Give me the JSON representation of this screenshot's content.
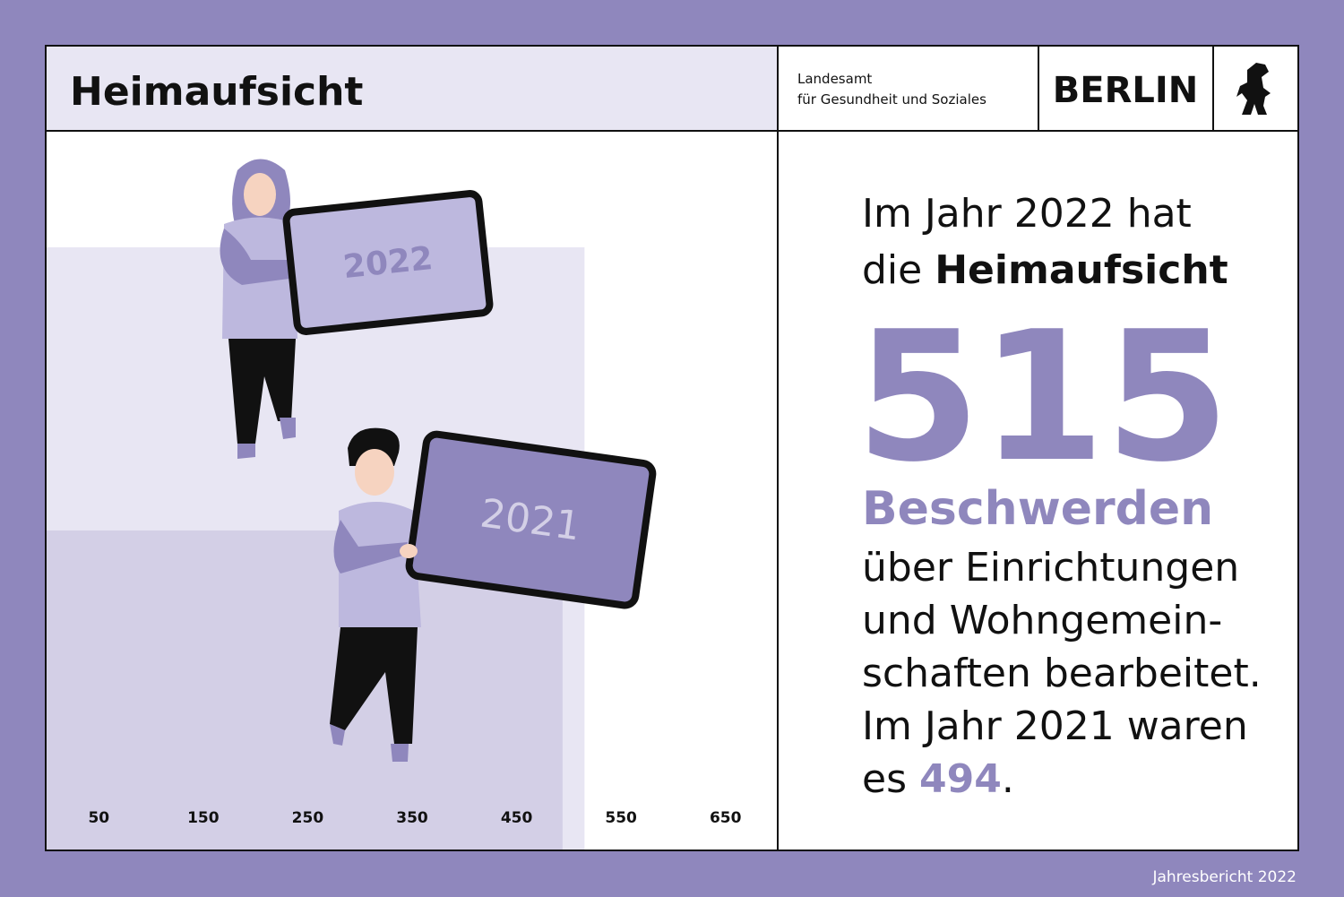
{
  "header": {
    "title": "Heimaufsicht",
    "org_line1": "Landesamt",
    "org_line2": "für Gesundheit und Soziales",
    "city": "BERLIN"
  },
  "chart_data": {
    "type": "bar",
    "orientation": "horizontal",
    "categories": [
      "2022",
      "2021"
    ],
    "values": [
      515,
      494
    ],
    "colors": [
      "#e8e6f3",
      "#d3cfe6"
    ],
    "xlim": [
      0,
      700
    ],
    "xticks": [
      50,
      150,
      250,
      350,
      450,
      550,
      650
    ]
  },
  "text": {
    "line1": "Im Jahr 2022 hat",
    "line2a": "die ",
    "line2b": "Heimaufsicht",
    "line4": "Beschwerden",
    "line5": "über Einrichtungen",
    "line6": "und Wohngemein-",
    "line7": "schaften bearbeitet.",
    "line8": "Im Jahr 2021 waren",
    "line9a": "es ",
    "line9c": "."
  },
  "footer": "Jahresbericht 2022"
}
